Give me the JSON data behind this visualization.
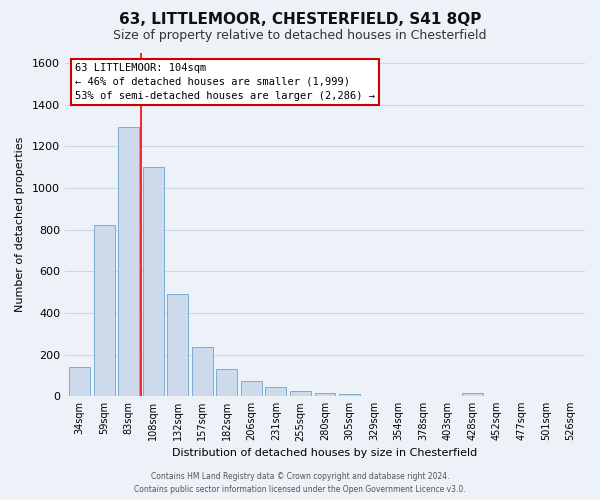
{
  "title": "63, LITTLEMOOR, CHESTERFIELD, S41 8QP",
  "subtitle": "Size of property relative to detached houses in Chesterfield",
  "xlabel": "Distribution of detached houses by size in Chesterfield",
  "ylabel": "Number of detached properties",
  "bar_labels": [
    "34sqm",
    "59sqm",
    "83sqm",
    "108sqm",
    "132sqm",
    "157sqm",
    "182sqm",
    "206sqm",
    "231sqm",
    "255sqm",
    "280sqm",
    "305sqm",
    "329sqm",
    "354sqm",
    "378sqm",
    "403sqm",
    "428sqm",
    "452sqm",
    "477sqm",
    "501sqm",
    "526sqm"
  ],
  "bar_values": [
    140,
    820,
    1290,
    1100,
    490,
    235,
    130,
    75,
    45,
    25,
    15,
    10,
    0,
    0,
    0,
    0,
    15,
    0,
    0,
    0,
    0
  ],
  "bar_color": "#ccdaec",
  "bar_edge_color": "#7aadd4",
  "red_line_x": 2.5,
  "ylim": [
    0,
    1650
  ],
  "yticks": [
    0,
    200,
    400,
    600,
    800,
    1000,
    1200,
    1400,
    1600
  ],
  "annotation_title": "63 LITTLEMOOR: 104sqm",
  "annotation_line1": "← 46% of detached houses are smaller (1,999)",
  "annotation_line2": "53% of semi-detached houses are larger (2,286) →",
  "annotation_box_color": "#ffffff",
  "annotation_box_edge": "#cc0000",
  "grid_color": "#ccd6e8",
  "background_color": "#edf2f8",
  "footer_line1": "Contains HM Land Registry data © Crown copyright and database right 2024.",
  "footer_line2": "Contains public sector information licensed under the Open Government Licence v3.0."
}
